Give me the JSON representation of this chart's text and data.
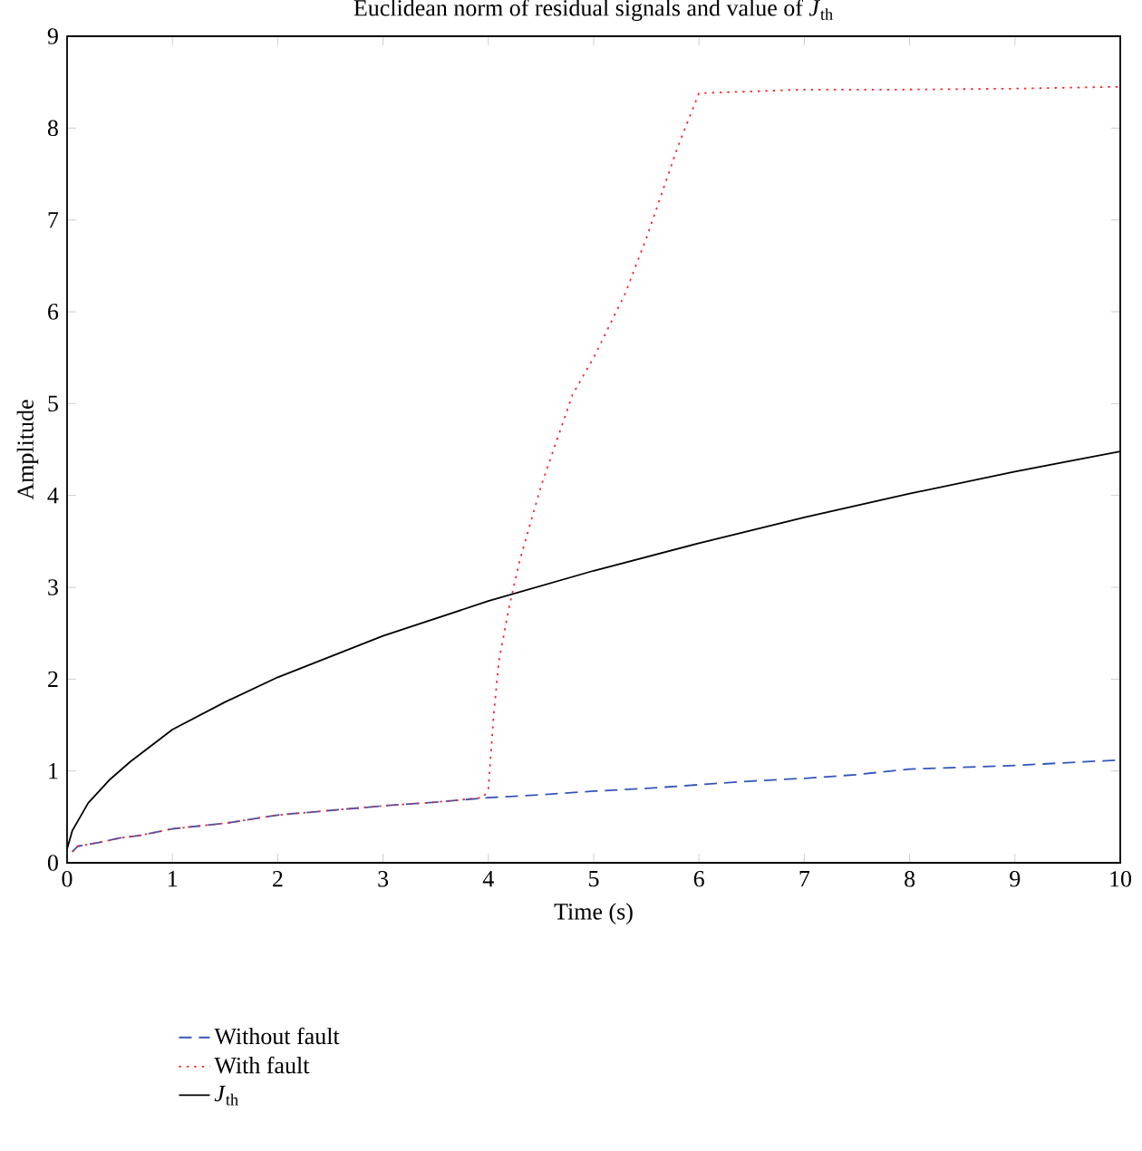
{
  "chart_data": {
    "type": "line",
    "title": "Euclidean norm of residual signals and value of *J*$_{th}$",
    "xlabel": "Time (s)",
    "ylabel": "Amplitude",
    "xlim": [
      0,
      10
    ],
    "xticks": [
      0,
      1,
      2,
      3,
      4,
      5,
      6,
      7,
      8,
      9,
      10
    ],
    "ylim": [
      0,
      9
    ],
    "yticks": [
      0,
      1,
      2,
      3,
      4,
      5,
      6,
      7,
      8,
      9
    ],
    "grid": false,
    "legend": "bottom left",
    "series": [
      {
        "name": "Without fault",
        "color": "#3355bb",
        "line_style": "dashed",
        "x": [
          0.05,
          0.1,
          0.3,
          0.5,
          0.7,
          1,
          1.5,
          2,
          2.5,
          3,
          3.5,
          4,
          4.5,
          5,
          5.5,
          6,
          6.5,
          7,
          7.5,
          8,
          8.5,
          9,
          9.5,
          10
        ],
        "values": [
          0.12,
          0.18,
          0.22,
          0.27,
          0.3,
          0.37,
          0.43,
          0.52,
          0.57,
          0.62,
          0.66,
          0.71,
          0.74,
          0.78,
          0.81,
          0.85,
          0.89,
          0.92,
          0.96,
          1.02,
          1.04,
          1.06,
          1.09,
          1.12
        ]
      },
      {
        "name": "With fault",
        "color": "#ff2222",
        "line_style": "dotted",
        "x": [
          0.05,
          0.1,
          0.3,
          0.5,
          0.7,
          1,
          1.5,
          2,
          2.5,
          3,
          3.5,
          3.95,
          4.0,
          4.05,
          4.1,
          4.2,
          4.3,
          4.5,
          4.8,
          5,
          5.3,
          5.5,
          5.8,
          6,
          7,
          8,
          9,
          10
        ],
        "values": [
          0.12,
          0.18,
          0.22,
          0.27,
          0.3,
          0.37,
          0.43,
          0.52,
          0.57,
          0.62,
          0.66,
          0.71,
          0.8,
          1.6,
          2.2,
          2.8,
          3.3,
          4.1,
          5.1,
          5.5,
          6.2,
          6.8,
          7.8,
          8.38,
          8.42,
          8.42,
          8.43,
          8.45
        ]
      },
      {
        "name": "*J*$_{th}$",
        "color": "#000000",
        "line_style": "solid",
        "x": [
          0,
          0.05,
          0.1,
          0.2,
          0.4,
          0.6,
          1,
          1.5,
          2,
          3,
          4,
          5,
          6,
          7,
          8,
          9,
          10
        ],
        "values": [
          0.15,
          0.35,
          0.45,
          0.65,
          0.9,
          1.1,
          1.45,
          1.75,
          2.02,
          2.47,
          2.85,
          3.18,
          3.48,
          3.76,
          4.02,
          4.26,
          4.48
        ]
      }
    ]
  }
}
